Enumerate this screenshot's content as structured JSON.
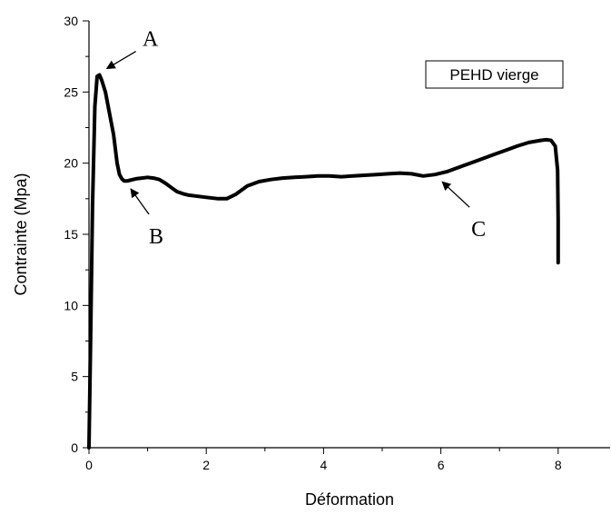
{
  "chart_data": {
    "type": "line",
    "title": "",
    "xlabel": "Déformation",
    "ylabel": "Contrainte (Mpa)",
    "xlim": [
      0,
      8.8
    ],
    "ylim": [
      0,
      30
    ],
    "x_ticks": [
      0,
      2,
      4,
      6,
      8
    ],
    "y_ticks": [
      0,
      5,
      10,
      15,
      20,
      25,
      30
    ],
    "grid": false,
    "legend": {
      "text": "PEHD vierge",
      "placement": "top-right"
    },
    "series": [
      {
        "name": "PEHD vierge",
        "x": [
          0,
          0.03,
          0.06,
          0.1,
          0.14,
          0.18,
          0.22,
          0.28,
          0.35,
          0.42,
          0.48,
          0.52,
          0.56,
          0.6,
          0.65,
          0.7,
          0.8,
          0.9,
          1.0,
          1.1,
          1.2,
          1.3,
          1.4,
          1.5,
          1.6,
          1.7,
          1.8,
          2.0,
          2.2,
          2.35,
          2.5,
          2.7,
          2.9,
          3.1,
          3.3,
          3.5,
          3.7,
          3.9,
          4.1,
          4.3,
          4.5,
          4.7,
          4.9,
          5.1,
          5.3,
          5.5,
          5.7,
          5.9,
          6.1,
          6.3,
          6.5,
          6.7,
          6.9,
          7.1,
          7.3,
          7.5,
          7.7,
          7.8,
          7.88,
          7.95,
          7.99,
          8.0,
          8.0
        ],
        "y": [
          0,
          8,
          17,
          24,
          26.1,
          26.2,
          25.8,
          25.0,
          23.5,
          22.0,
          20.0,
          19.2,
          18.9,
          18.75,
          18.75,
          18.8,
          18.9,
          18.95,
          19.0,
          18.95,
          18.85,
          18.6,
          18.3,
          18.0,
          17.85,
          17.75,
          17.7,
          17.6,
          17.5,
          17.5,
          17.8,
          18.4,
          18.7,
          18.85,
          18.95,
          19.0,
          19.05,
          19.1,
          19.1,
          19.05,
          19.1,
          19.15,
          19.2,
          19.25,
          19.3,
          19.25,
          19.1,
          19.2,
          19.4,
          19.7,
          20.0,
          20.3,
          20.6,
          20.9,
          21.2,
          21.45,
          21.6,
          21.65,
          21.6,
          21.2,
          19.5,
          16.0,
          13.0
        ]
      }
    ],
    "annotations": [
      {
        "label": "A",
        "x": 0.18,
        "y": 26.2
      },
      {
        "label": "B",
        "x": 0.62,
        "y": 18.7
      },
      {
        "label": "C",
        "x": 5.9,
        "y": 19.2
      }
    ]
  }
}
